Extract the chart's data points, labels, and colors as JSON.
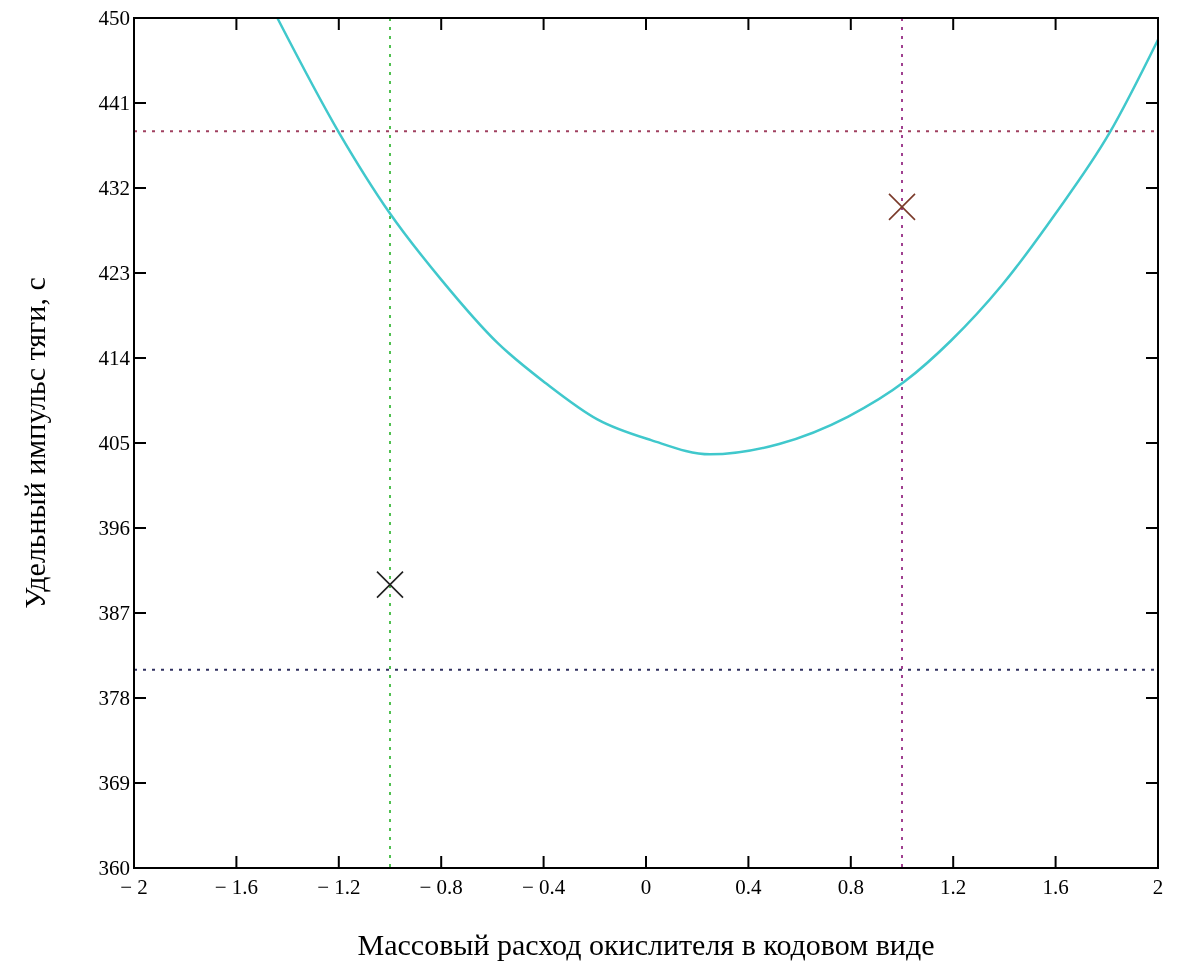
{
  "chart_data": {
    "type": "line",
    "xlabel": "Массовый расход окислителя в кодовом виде",
    "ylabel": "Удельный импульс тяги, с",
    "xlim": [
      -2,
      2
    ],
    "ylim": [
      360,
      450
    ],
    "xticks": [
      {
        "value": -2,
        "label": "− 2"
      },
      {
        "value": -1.6,
        "label": "− 1.6"
      },
      {
        "value": -1.2,
        "label": "− 1.2"
      },
      {
        "value": -0.8,
        "label": "− 0.8"
      },
      {
        "value": -0.4,
        "label": "− 0.4"
      },
      0,
      0.4,
      0.8,
      1.2,
      1.6,
      2
    ],
    "yticks": [
      360,
      369,
      378,
      387,
      396,
      405,
      414,
      423,
      432,
      441,
      450
    ],
    "grid": false,
    "series": [
      {
        "color": "#40c8cc",
        "marker": "none",
        "x": [
          -1.44,
          -1.2,
          -1,
          -0.8,
          -0.58,
          -0.39,
          -0.19,
          0.02,
          0.25,
          0.52,
          0.79,
          1.01,
          1.19,
          1.39,
          1.6,
          1.81,
          2
        ],
        "values": [
          450,
          437.9,
          429.3,
          422.3,
          415.6,
          411.3,
          407.5,
          405.3,
          403.8,
          404.9,
          407.8,
          411.5,
          415.8,
          421.7,
          429.3,
          437.8,
          447.7
        ]
      },
      {
        "type": "scatter",
        "color": "#202020",
        "marker": "cross",
        "x": [
          -1
        ],
        "values": [
          390
        ]
      },
      {
        "type": "scatter",
        "color": "#7a3a2a",
        "marker": "cross",
        "x": [
          1
        ],
        "values": [
          430
        ]
      }
    ],
    "ref_lines": [
      {
        "axis": "y",
        "value": 438,
        "color": "#a04060",
        "line_style": "dotted"
      },
      {
        "axis": "y",
        "value": 381,
        "color": "#303060",
        "line_style": "dotted"
      },
      {
        "axis": "x",
        "value": -1,
        "color": "#50c050",
        "line_style": "dotted"
      },
      {
        "axis": "x",
        "value": 1,
        "color": "#a04090",
        "line_style": "dotted"
      }
    ]
  }
}
